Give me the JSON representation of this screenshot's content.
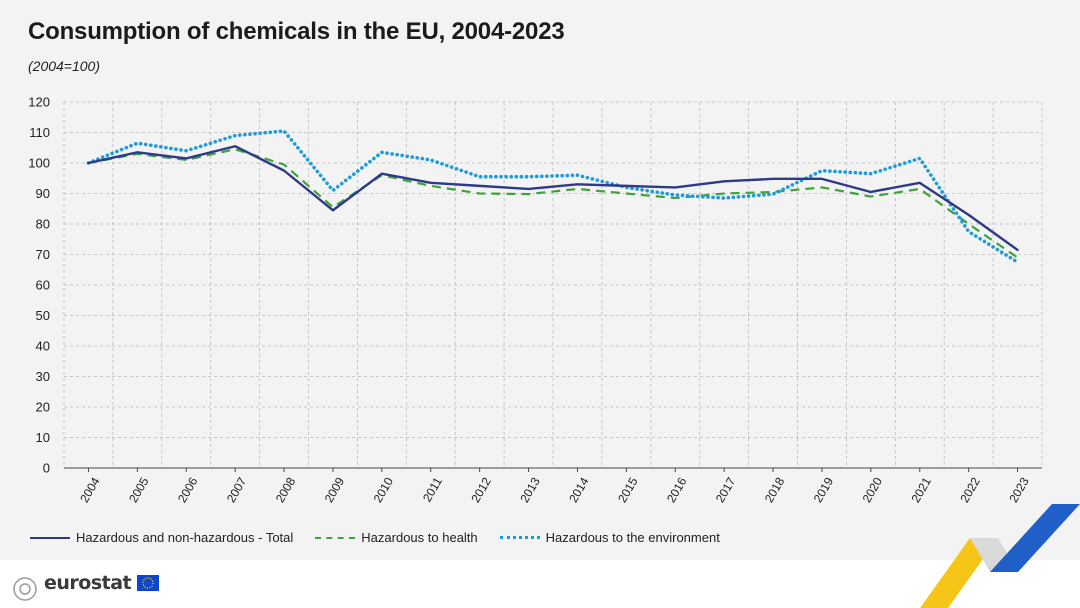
{
  "title": "Consumption of chemicals in the EU, 2004-2023",
  "subtitle": "(2004=100)",
  "brand": {
    "name": "eurostat"
  },
  "colors": {
    "total": "#2e3a87",
    "health": "#3fa33a",
    "environment": "#1f9bd7",
    "grid": "#b9b9b9",
    "axis": "#444444"
  },
  "chart_data": {
    "type": "line",
    "title": "Consumption of chemicals in the EU, 2004-2023",
    "subtitle": "(2004=100)",
    "xlabel": "",
    "ylabel": "",
    "ylim": [
      0,
      120
    ],
    "yticks": [
      0,
      10,
      20,
      30,
      40,
      50,
      60,
      70,
      80,
      90,
      100,
      110,
      120
    ],
    "categories": [
      "2004",
      "2005",
      "2006",
      "2007",
      "2008",
      "2009",
      "2010",
      "2011",
      "2012",
      "2013",
      "2014",
      "2015",
      "2016",
      "2017",
      "2018",
      "2019",
      "2020",
      "2021",
      "2022",
      "2023"
    ],
    "grid": true,
    "legend_position": "bottom",
    "series": [
      {
        "name": "Hazardous and non-hazardous - Total",
        "style": "solid",
        "values": [
          100,
          103.5,
          101.5,
          105.5,
          97.5,
          84.5,
          96.5,
          93.5,
          92.5,
          91.5,
          93.0,
          92.5,
          92.0,
          94.0,
          94.8,
          94.8,
          90.5,
          93.5,
          83.0,
          71.5
        ]
      },
      {
        "name": "Hazardous to health",
        "style": "dashed",
        "values": [
          100,
          103.0,
          101.0,
          104.5,
          99.5,
          85.5,
          96.0,
          92.5,
          90.0,
          89.8,
          91.5,
          90.0,
          88.5,
          90.0,
          90.5,
          92.0,
          89.0,
          91.5,
          80.0,
          69.0
        ]
      },
      {
        "name": "Hazardous to the environment",
        "style": "dotted",
        "values": [
          100,
          106.5,
          104.0,
          109.0,
          110.5,
          91.0,
          103.5,
          101.0,
          95.5,
          95.5,
          96.0,
          92.0,
          89.5,
          88.5,
          89.8,
          97.5,
          96.5,
          101.5,
          77.5,
          67.5
        ]
      }
    ]
  }
}
